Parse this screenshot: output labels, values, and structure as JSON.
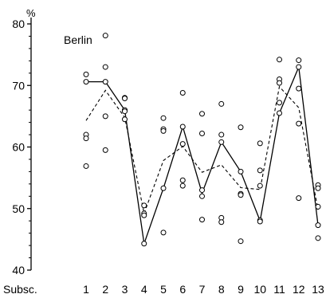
{
  "chart_data": {
    "type": "line",
    "y_unit": "%",
    "annotation": "Berlin",
    "x_header": "Subsc.",
    "categories": [
      "1",
      "2",
      "3",
      "4",
      "5",
      "6",
      "7",
      "8",
      "9",
      "10",
      "11",
      "12",
      "13"
    ],
    "ylim": [
      40,
      80
    ],
    "yticks": [
      40,
      50,
      60,
      70,
      80
    ],
    "grid": false,
    "series": [
      {
        "style": "solid",
        "values": [
          70.6,
          70.6,
          66.0,
          44.3,
          53.3,
          63.3,
          52.5,
          60.8,
          56.0,
          48.0,
          65.5,
          73.0,
          47.3
        ]
      },
      {
        "style": "dashed",
        "values": [
          64.3,
          69.2,
          64.8,
          49.2,
          57.8,
          60.1,
          55.9,
          57.1,
          53.4,
          53.1,
          69.8,
          66.4,
          49.8
        ]
      }
    ],
    "scatter": [
      {
        "x": "1",
        "ys": [
          71.8,
          70.6,
          62.0,
          61.4,
          56.9
        ]
      },
      {
        "x": "2",
        "ys": [
          78.1,
          73.0,
          70.6,
          65.0,
          59.5
        ]
      },
      {
        "x": "3",
        "ys": [
          68.0,
          67.9,
          66.0,
          65.8,
          64.5
        ]
      },
      {
        "x": "4",
        "ys": [
          50.5,
          49.2,
          48.9,
          44.3
        ]
      },
      {
        "x": "5",
        "ys": [
          64.7,
          62.9,
          62.6,
          53.3,
          46.1
        ]
      },
      {
        "x": "6",
        "ys": [
          68.8,
          63.3,
          60.5,
          54.6,
          53.7
        ]
      },
      {
        "x": "7",
        "ys": [
          65.4,
          62.2,
          53.0,
          52.0,
          48.2
        ]
      },
      {
        "x": "8",
        "ys": [
          67.0,
          62.0,
          60.8,
          48.5,
          47.8
        ]
      },
      {
        "x": "9",
        "ys": [
          63.2,
          56.0,
          52.4,
          52.2,
          44.7
        ]
      },
      {
        "x": "10",
        "ys": [
          60.6,
          56.2,
          53.7,
          48.1,
          47.9
        ]
      },
      {
        "x": "11",
        "ys": [
          74.2,
          71.0,
          70.4,
          67.2,
          65.5
        ]
      },
      {
        "x": "12",
        "ys": [
          74.1,
          73.0,
          69.5,
          63.8,
          51.7
        ]
      },
      {
        "x": "13",
        "ys": [
          53.8,
          53.3,
          50.3,
          47.3,
          45.2
        ]
      }
    ]
  }
}
